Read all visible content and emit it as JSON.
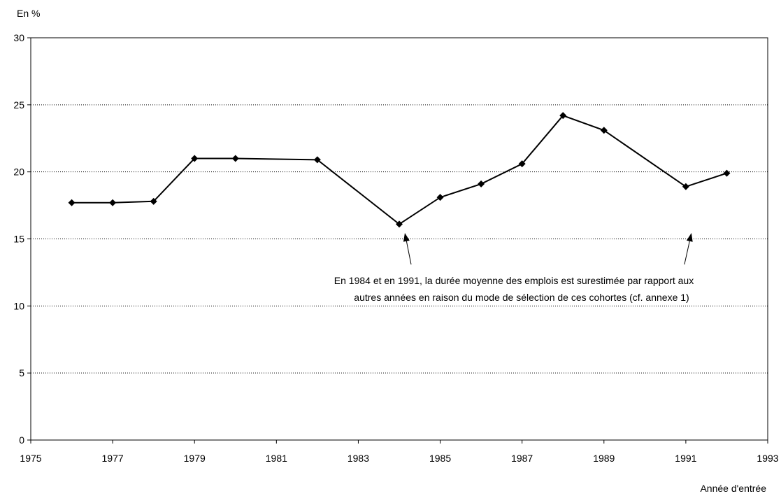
{
  "chart_data": {
    "type": "line",
    "ylabel": "En %",
    "xlabel": "Année d'entrée",
    "xlim": [
      1975,
      1993
    ],
    "ylim": [
      0,
      30
    ],
    "xticks": [
      1975,
      1977,
      1979,
      1981,
      1983,
      1985,
      1987,
      1989,
      1991,
      1993
    ],
    "yticks": [
      0,
      5,
      10,
      15,
      20,
      25,
      30
    ],
    "grid": "horizontal dotted",
    "series": [
      {
        "x": [
          1976,
          1977,
          1978,
          1979,
          1980,
          1982,
          1984,
          1985,
          1986,
          1987,
          1988,
          1989,
          1991,
          1992
        ],
        "y": [
          17.7,
          17.7,
          17.8,
          21.0,
          21.0,
          20.9,
          16.1,
          18.1,
          19.1,
          20.6,
          24.2,
          23.1,
          18.9,
          19.9
        ]
      }
    ],
    "annotation": {
      "lines": [
        "En 1984 et en 1991, la durée  moyenne des emplois est surestimée par rapport aux",
        "autres années en raison du mode de sélection de ces cohortes (cf. annexe 1)"
      ],
      "arrow_targets_x": [
        1984,
        1991
      ]
    },
    "colors": {
      "line": "#000000",
      "grid": "#000000",
      "axis": "#000000"
    }
  }
}
